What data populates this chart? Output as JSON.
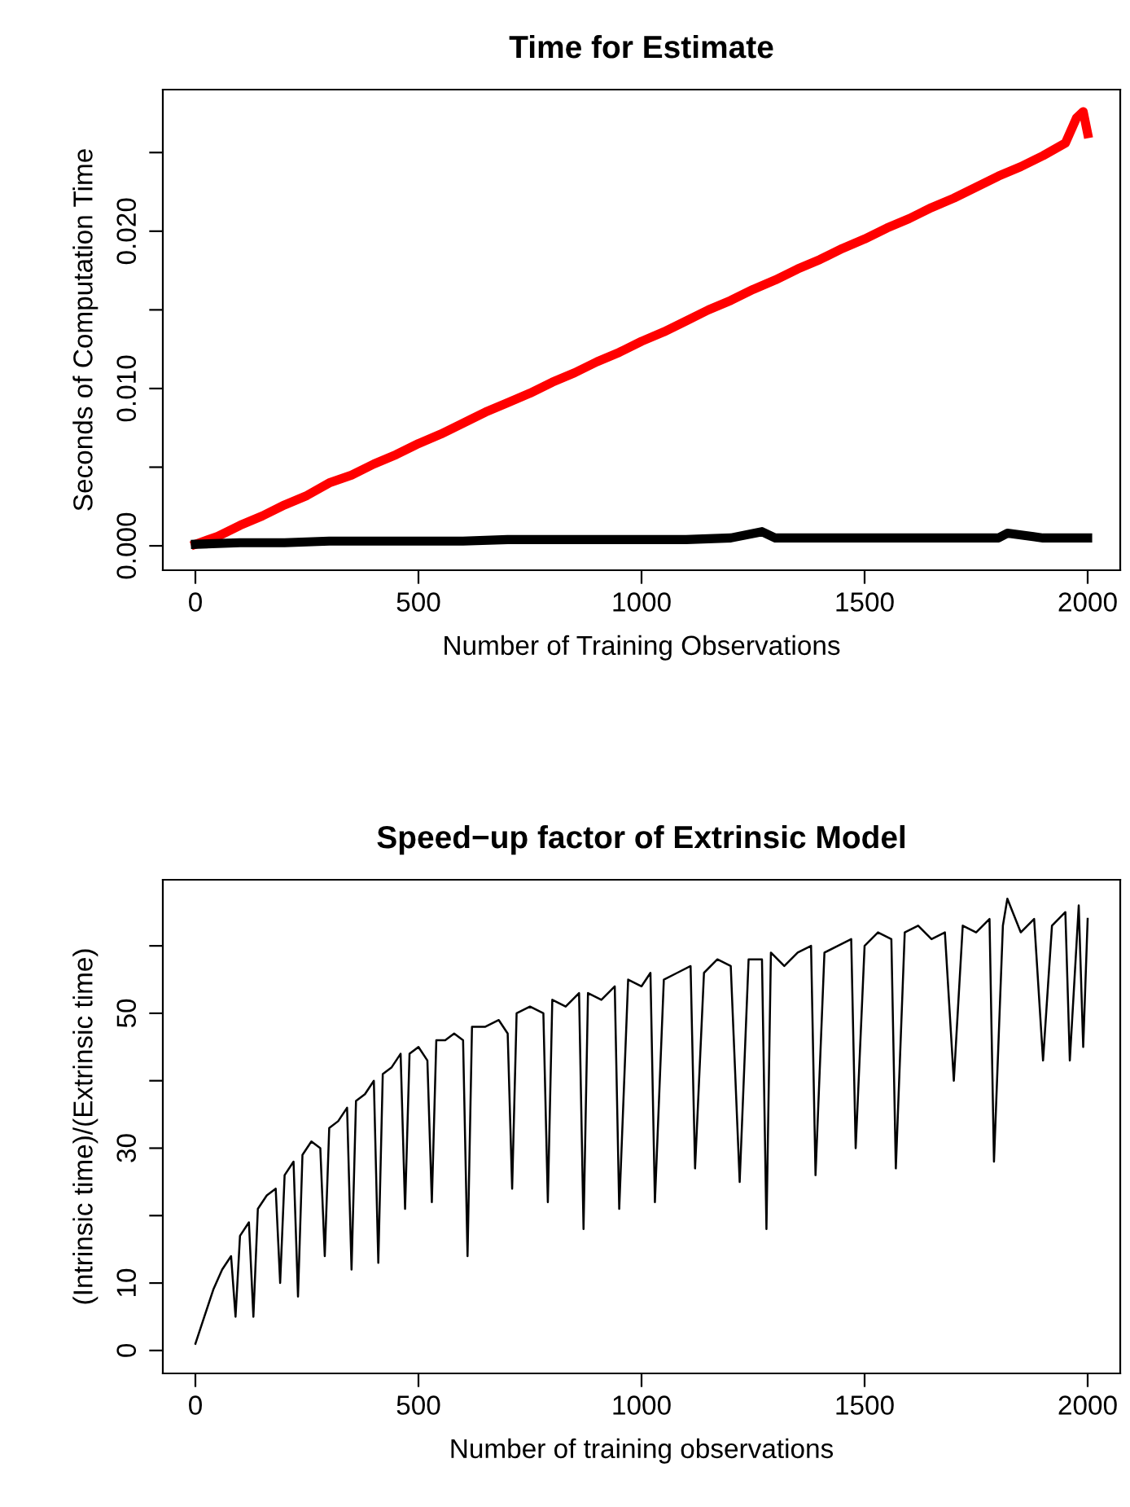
{
  "chart_data": [
    {
      "type": "line",
      "title": "Time for Estimate",
      "xlabel": "Number of Training Observations",
      "ylabel": "Seconds of Computation Time",
      "xlim": [
        -73,
        2073
      ],
      "ylim": [
        -0.00155,
        0.029
      ],
      "xticks": [
        0,
        500,
        1000,
        1500,
        2000
      ],
      "yticks": [
        {
          "value": 0,
          "label": "0.000"
        },
        {
          "value": 0.005,
          "label": null
        },
        {
          "value": 0.01,
          "label": "0.010"
        },
        {
          "value": 0.015,
          "label": null
        },
        {
          "value": 0.02,
          "label": "0.020"
        },
        {
          "value": 0.025,
          "label": null
        }
      ],
      "grid": false,
      "legend": false,
      "line_style": "solid",
      "marker": "none",
      "series": [
        {
          "color": "#ff0000",
          "x": [
            0,
            50,
            100,
            150,
            200,
            250,
            300,
            350,
            400,
            450,
            500,
            550,
            600,
            650,
            700,
            750,
            800,
            850,
            900,
            950,
            1000,
            1050,
            1100,
            1150,
            1200,
            1250,
            1300,
            1350,
            1400,
            1450,
            1500,
            1550,
            1600,
            1650,
            1700,
            1750,
            1800,
            1850,
            1900,
            1950,
            1975,
            1990,
            2000
          ],
          "values": [
            0.0001,
            0.0006,
            0.0013,
            0.0019,
            0.0026,
            0.0032,
            0.004,
            0.0045,
            0.0052,
            0.0058,
            0.0065,
            0.0071,
            0.0078,
            0.0085,
            0.0091,
            0.0097,
            0.0104,
            0.011,
            0.0117,
            0.0123,
            0.013,
            0.0136,
            0.0143,
            0.015,
            0.0156,
            0.0163,
            0.0169,
            0.0176,
            0.0182,
            0.0189,
            0.0195,
            0.0202,
            0.0208,
            0.0215,
            0.0221,
            0.0228,
            0.0235,
            0.0241,
            0.0248,
            0.0256,
            0.0272,
            0.0276,
            0.0262
          ]
        },
        {
          "color": "#000000",
          "x": [
            0,
            100,
            200,
            300,
            400,
            500,
            600,
            700,
            800,
            900,
            1000,
            1100,
            1200,
            1270,
            1300,
            1400,
            1500,
            1600,
            1700,
            1800,
            1820,
            1900,
            2000
          ],
          "values": [
            0.0001,
            0.0002,
            0.0002,
            0.0003,
            0.0003,
            0.0003,
            0.0003,
            0.0004,
            0.0004,
            0.0004,
            0.0004,
            0.0004,
            0.0005,
            0.0009,
            0.0005,
            0.0005,
            0.0005,
            0.0005,
            0.0005,
            0.0005,
            0.0008,
            0.0005,
            0.0005
          ]
        }
      ]
    },
    {
      "type": "line",
      "title": "Speed−up factor of Extrinsic Model",
      "xlabel": "Number of training observations",
      "ylabel": "(Intrinsic time)/(Extrinsic time)",
      "xlim": [
        -73,
        2073
      ],
      "ylim": [
        -3.4,
        69.8
      ],
      "xticks": [
        0,
        500,
        1000,
        1500,
        2000
      ],
      "yticks": [
        0,
        10,
        {
          "value": 20,
          "label": null
        },
        30,
        {
          "value": 40,
          "label": null
        },
        50,
        {
          "value": 60,
          "label": null
        }
      ],
      "grid": false,
      "legend": false,
      "line_style": "solid",
      "marker": "none",
      "series": [
        {
          "color": "#000000",
          "x": [
            0,
            20,
            40,
            60,
            80,
            90,
            100,
            120,
            130,
            140,
            160,
            180,
            190,
            200,
            220,
            230,
            240,
            260,
            280,
            290,
            300,
            320,
            340,
            350,
            360,
            380,
            400,
            410,
            420,
            440,
            460,
            470,
            480,
            500,
            520,
            530,
            540,
            560,
            580,
            600,
            610,
            620,
            650,
            680,
            700,
            710,
            720,
            750,
            780,
            790,
            800,
            830,
            860,
            870,
            880,
            910,
            940,
            950,
            970,
            1000,
            1020,
            1030,
            1050,
            1080,
            1110,
            1120,
            1140,
            1170,
            1200,
            1220,
            1240,
            1270,
            1280,
            1290,
            1320,
            1350,
            1380,
            1390,
            1410,
            1440,
            1470,
            1480,
            1500,
            1530,
            1560,
            1570,
            1590,
            1620,
            1650,
            1680,
            1700,
            1720,
            1750,
            1780,
            1790,
            1810,
            1820,
            1850,
            1880,
            1900,
            1920,
            1950,
            1960,
            1980,
            1990,
            2000
          ],
          "values": [
            1,
            5,
            9,
            12,
            14,
            5,
            17,
            19,
            5,
            21,
            23,
            24,
            10,
            26,
            28,
            8,
            29,
            31,
            30,
            14,
            33,
            34,
            36,
            12,
            37,
            38,
            40,
            13,
            41,
            42,
            44,
            21,
            44,
            45,
            43,
            22,
            46,
            46,
            47,
            46,
            14,
            48,
            48,
            49,
            47,
            24,
            50,
            51,
            50,
            22,
            52,
            51,
            53,
            18,
            53,
            52,
            54,
            21,
            55,
            54,
            56,
            22,
            55,
            56,
            57,
            27,
            56,
            58,
            57,
            25,
            58,
            58,
            18,
            59,
            57,
            59,
            60,
            26,
            59,
            60,
            61,
            30,
            60,
            62,
            61,
            27,
            62,
            63,
            61,
            62,
            40,
            63,
            62,
            64,
            28,
            63,
            67,
            62,
            64,
            43,
            63,
            65,
            43,
            66,
            45,
            64
          ]
        }
      ]
    }
  ]
}
